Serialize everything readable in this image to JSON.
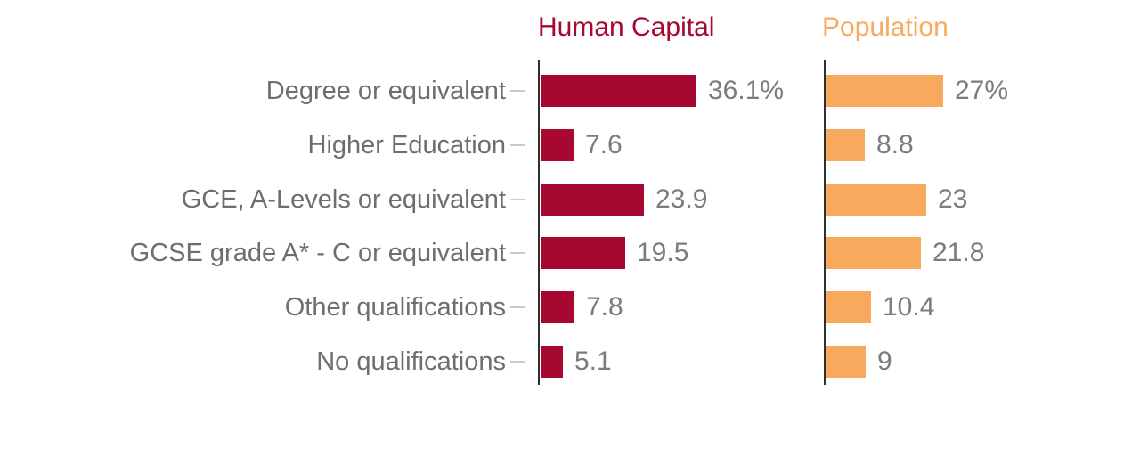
{
  "chart_data": {
    "type": "bar",
    "orientation": "horizontal",
    "title": "",
    "categories": [
      "Degree or equivalent",
      "Higher Education",
      "GCE, A-Levels or equivalent",
      "GCSE grade A* - C or equivalent",
      "Other qualifications",
      "No qualifications"
    ],
    "series": [
      {
        "name": "Human Capital",
        "color": "#a6082f",
        "values": [
          36.1,
          7.6,
          23.9,
          19.5,
          7.8,
          5.1
        ],
        "value_labels": [
          "36.1%",
          "7.6",
          "23.9",
          "19.5",
          "7.8",
          "5.1"
        ]
      },
      {
        "name": "Population",
        "color": "#f9a95d",
        "values": [
          27,
          8.8,
          23,
          21.8,
          10.4,
          9
        ],
        "value_labels": [
          "27%",
          "8.8",
          "23",
          "21.8",
          "10.4",
          "9"
        ]
      }
    ],
    "xlim": [
      0,
      40
    ],
    "grid": "off",
    "legend_position": "column-headers-top",
    "category_label_color": "#6e6e6e",
    "value_label_color": "#7c7c7c",
    "axis_color": "#2e2e2e",
    "background": "#ffffff"
  }
}
